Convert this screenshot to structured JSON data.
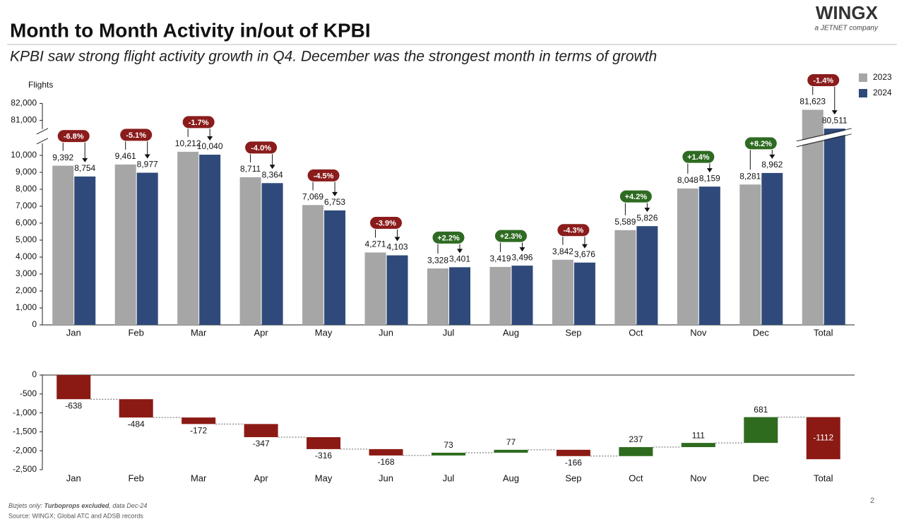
{
  "header": {
    "title": "Month to Month Activity in/out of KPBI",
    "subtitle": "KPBI saw strong flight activity growth in Q4. December was the strongest month in terms of growth",
    "logo": "WINGX",
    "logo_tagline": "a JETNET company"
  },
  "chart_data": [
    {
      "type": "bar",
      "y_label": "Flights",
      "categories": [
        "Jan",
        "Feb",
        "Mar",
        "Apr",
        "May",
        "Jun",
        "Jul",
        "Aug",
        "Sep",
        "Oct",
        "Nov",
        "Dec",
        "Total"
      ],
      "series": [
        {
          "name": "2023",
          "color": "#a6a6a6",
          "values": [
            9392,
            9461,
            10212,
            8711,
            7069,
            4271,
            3328,
            3419,
            3842,
            5589,
            8048,
            8281,
            81623
          ],
          "value_labels": [
            "9,392",
            "9,461",
            "10,212",
            "8,711",
            "7,069",
            "4,271",
            "3,328",
            "3,419",
            "3,842",
            "5,589",
            "8,048",
            "8,281",
            "81,623"
          ]
        },
        {
          "name": "2024",
          "color": "#2f4a7a",
          "values": [
            8754,
            8977,
            10040,
            8364,
            6753,
            4103,
            3401,
            3496,
            3676,
            5826,
            8159,
            8962,
            80511
          ],
          "value_labels": [
            "8,754",
            "8,977",
            "10,040",
            "8,364",
            "6,753",
            "4,103",
            "3,401",
            "3,496",
            "3,676",
            "5,826",
            "8,159",
            "8,962",
            "80,511"
          ]
        }
      ],
      "changes": [
        -6.8,
        -5.1,
        -1.7,
        -4.0,
        -4.5,
        -3.9,
        2.2,
        2.3,
        -4.3,
        4.2,
        1.4,
        8.2,
        -1.4
      ],
      "change_labels": [
        "-6.8%",
        "-5.1%",
        "-1.7%",
        "-4.0%",
        "-4.5%",
        "-3.9%",
        "+2.2%",
        "+2.3%",
        "-4.3%",
        "+4.2%",
        "+1.4%",
        "+8.2%",
        "-1.4%"
      ],
      "positive_color": "#2e6b22",
      "negative_color": "#8b1c1c",
      "ylim": [
        0,
        82000
      ],
      "y_break": [
        10800,
        80400
      ],
      "yticks": [
        0,
        {
          "value": 1000,
          "label": "1,000"
        },
        {
          "value": 2000,
          "label": "2,000"
        },
        {
          "value": 3000,
          "label": "3,000"
        },
        {
          "value": 4000,
          "label": "4,000"
        },
        {
          "value": 5000,
          "label": "5,000"
        },
        {
          "value": 6000,
          "label": "6,000"
        },
        {
          "value": 7000,
          "label": "7,000"
        },
        {
          "value": 8000,
          "label": "8,000"
        },
        {
          "value": 9000,
          "label": "9,000"
        },
        {
          "value": 10000,
          "label": "10,000"
        },
        {
          "value": 81000,
          "label": "81,000"
        },
        {
          "value": 82000,
          "label": "82,000"
        }
      ],
      "legend": "top-right"
    },
    {
      "type": "waterfall",
      "categories": [
        "Jan",
        "Feb",
        "Mar",
        "Apr",
        "May",
        "Jun",
        "Jul",
        "Aug",
        "Sep",
        "Oct",
        "Nov",
        "Dec",
        "Total"
      ],
      "values": [
        -638,
        -484,
        -172,
        -347,
        -316,
        -168,
        73,
        77,
        -166,
        237,
        111,
        681,
        -1112
      ],
      "positive_color": "#2e6b1f",
      "negative_color": "#8b1a14",
      "ylim": [
        -2500,
        0
      ],
      "yticks": [
        {
          "value": -2500,
          "label": "-2,500"
        },
        {
          "value": -2000,
          "label": "-2,000"
        },
        {
          "value": -1500,
          "label": "-1,500"
        },
        {
          "value": -1000,
          "label": "-1,000"
        },
        -500,
        0
      ]
    }
  ],
  "footer": {
    "note_parts": [
      "Bizjets only:",
      "Turboprops excluded",
      ", data Dec-24"
    ],
    "source": "Source: WINGX; Global ATC and ADSB records",
    "page": "2"
  }
}
